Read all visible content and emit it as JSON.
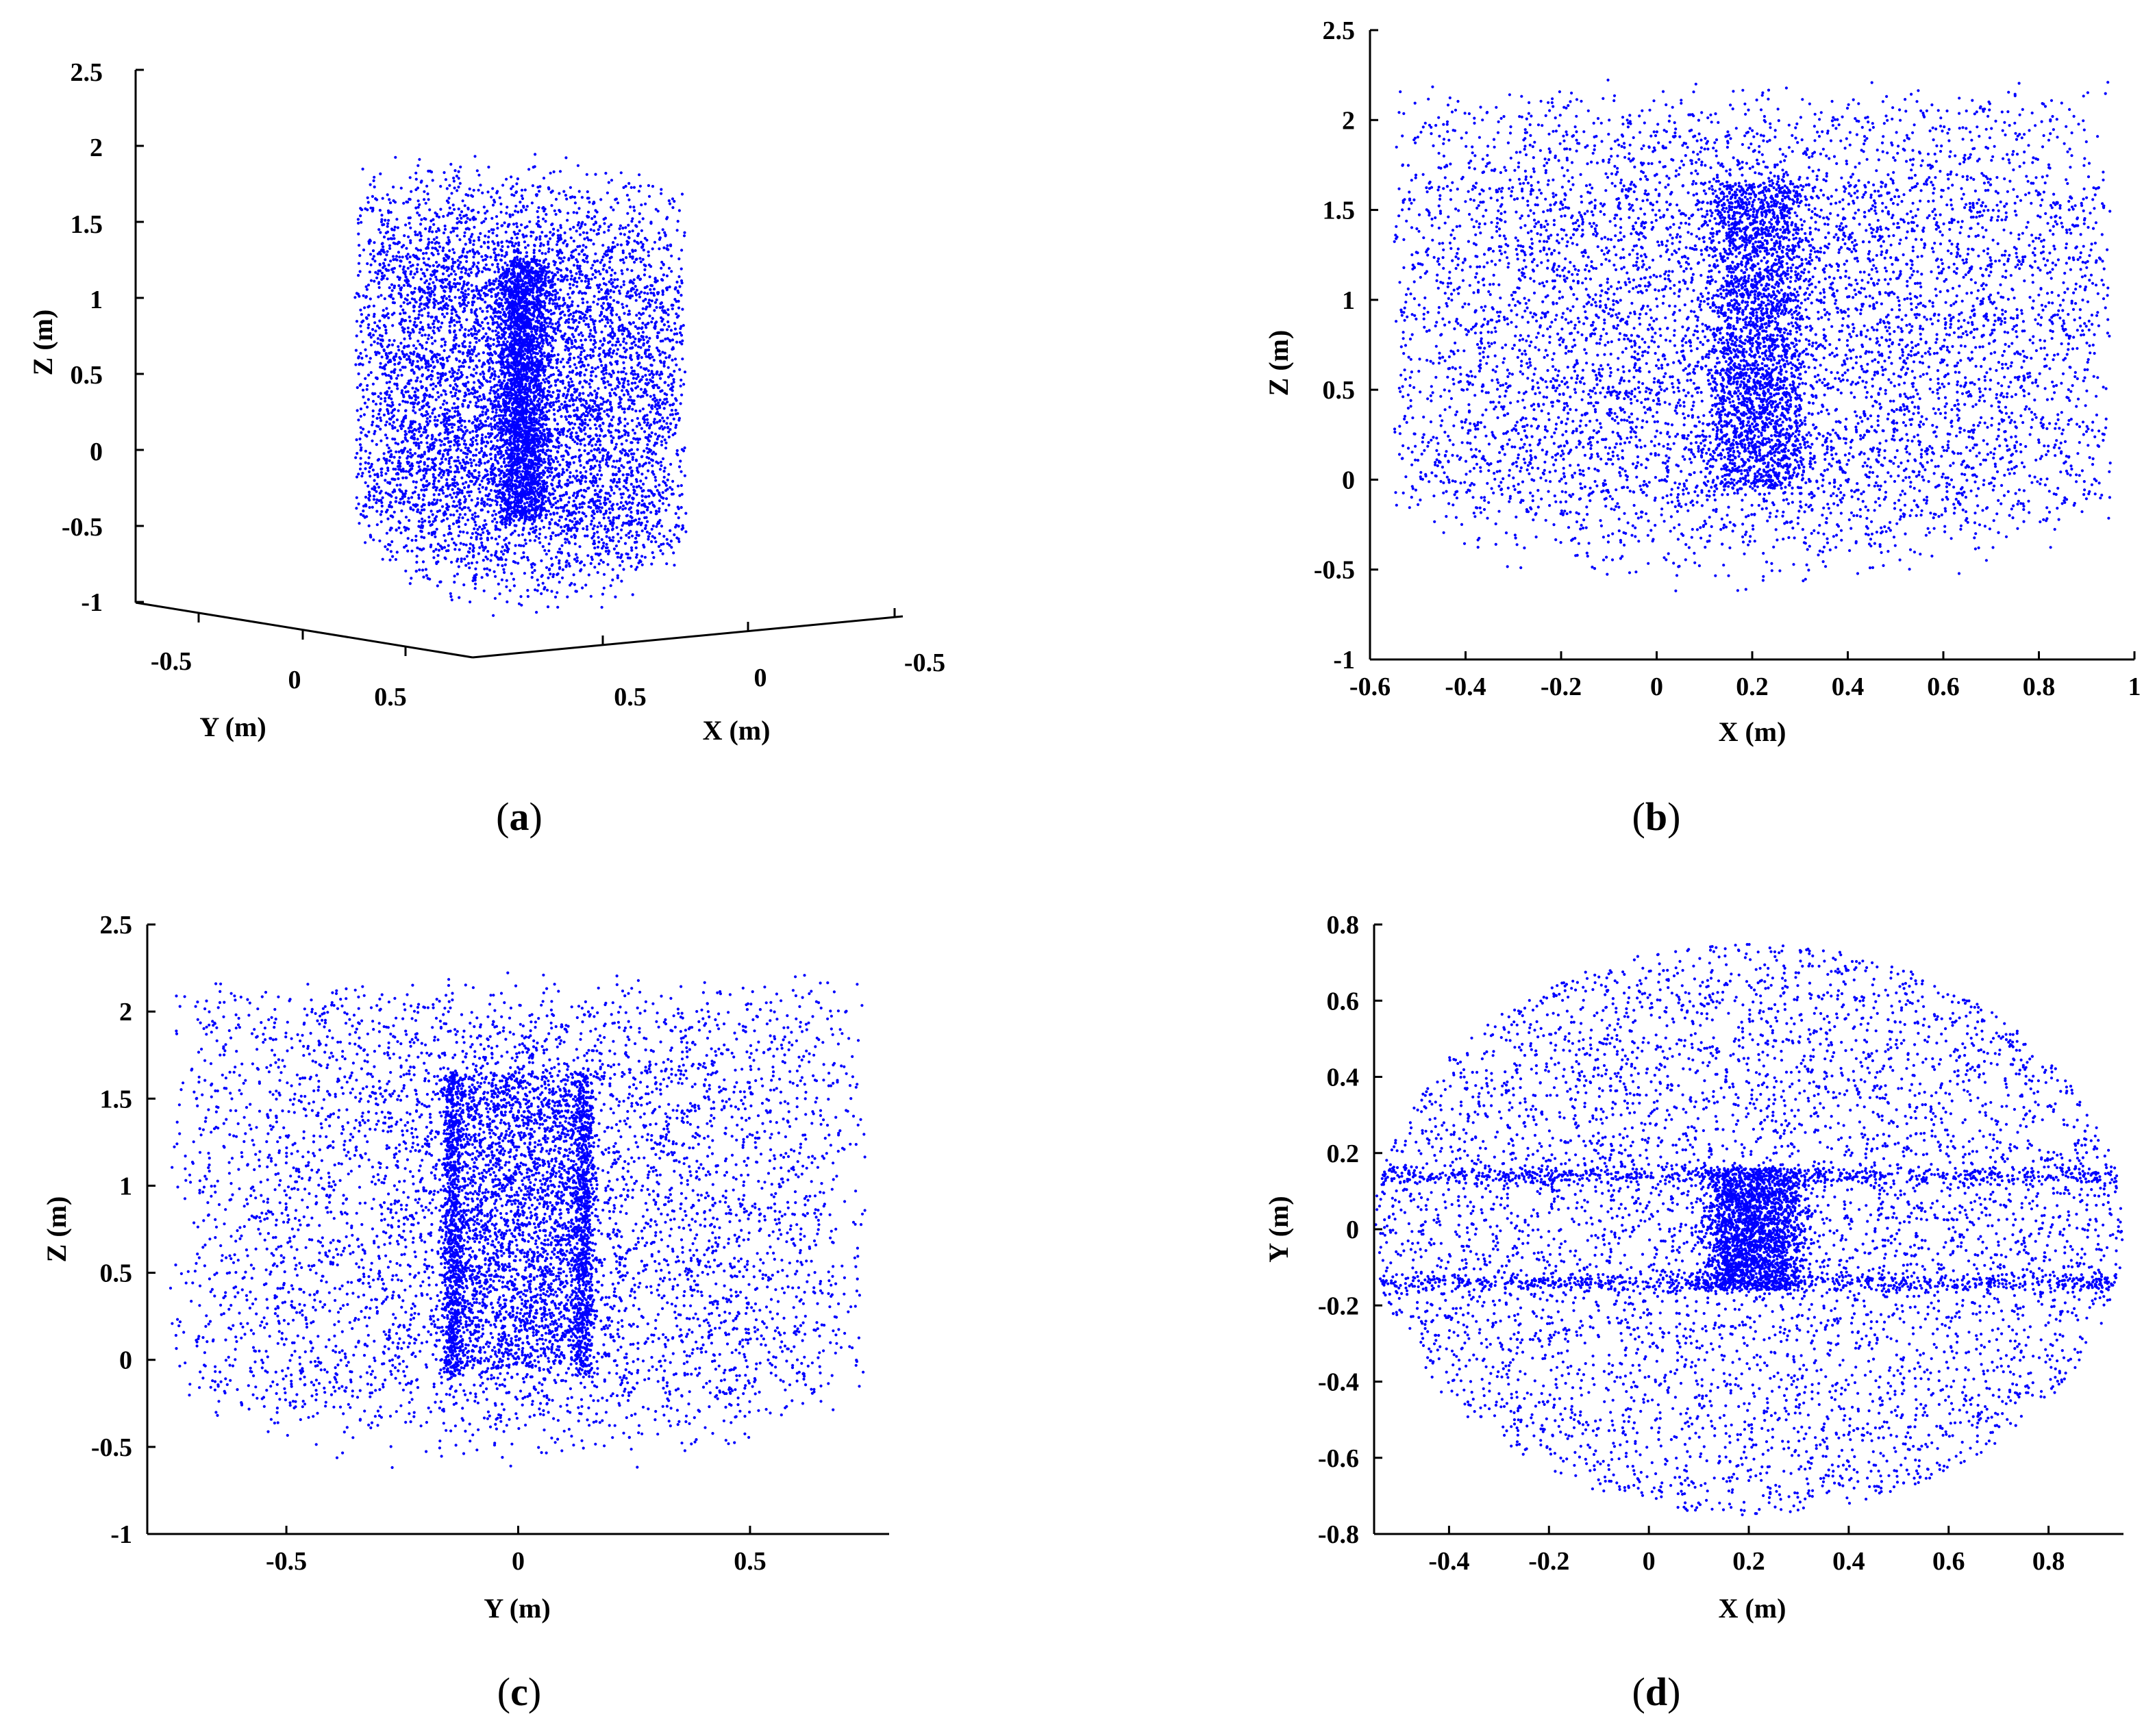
{
  "figure": {
    "colors": {
      "points": "#0000ff",
      "axes": "#000000",
      "background": "#ffffff"
    }
  },
  "chart_data": [
    {
      "panel": "a",
      "type": "scatter",
      "view": "3d",
      "caption": {
        "open": "(",
        "letter": "a",
        "close": ")"
      },
      "xlabel": "X (m)",
      "ylabel": "Y (m)",
      "zlabel": "Z (m)",
      "x_ticks": [
        "0.5",
        "0",
        "-0.5"
      ],
      "y_ticks": [
        "-0.5",
        "0",
        "0.5"
      ],
      "z_ticks": [
        "2.5",
        "2",
        "1.5",
        "1",
        "0.5",
        "0",
        "-0.5",
        "-1"
      ],
      "zlim": [
        -1,
        2.5
      ],
      "point_cloud": {
        "shape": "cylinder",
        "x_range": [
          -0.55,
          0.95
        ],
        "y_range": [
          -0.75,
          0.75
        ],
        "z_range": [
          -0.7,
          2.25
        ],
        "dense_core_x": [
          0.1,
          0.3
        ],
        "dense_core_y": [
          -0.15,
          0.15
        ],
        "dense_core_z": [
          -0.1,
          1.7
        ]
      }
    },
    {
      "panel": "b",
      "type": "scatter",
      "caption": {
        "open": "(",
        "letter": "b",
        "close": ")"
      },
      "xlabel": "X (m)",
      "ylabel": "Z (m)",
      "x_ticks": [
        "-0.6",
        "-0.4",
        "-0.2",
        "0",
        "0.2",
        "0.4",
        "0.6",
        "0.8",
        "1"
      ],
      "y_ticks": [
        "2.5",
        "2",
        "1.5",
        "1",
        "0.5",
        "0",
        "-0.5",
        "-1"
      ],
      "xlim": [
        -0.6,
        1.0
      ],
      "ylim": [
        -1,
        2.5
      ],
      "point_cloud": {
        "x_range": [
          -0.55,
          0.95
        ],
        "z_range": [
          -0.7,
          2.25
        ],
        "dense_band_x": [
          0.15,
          0.3
        ],
        "dense_band_z": [
          -0.1,
          1.7
        ]
      }
    },
    {
      "panel": "c",
      "type": "scatter",
      "caption": {
        "open": "(",
        "letter": "c",
        "close": ")"
      },
      "xlabel": "Y (m)",
      "ylabel": "Z (m)",
      "x_ticks": [
        "-0.5",
        "0",
        "0.5"
      ],
      "y_ticks": [
        "2.5",
        "2",
        "1.5",
        "1",
        "0.5",
        "0",
        "-0.5",
        "-1"
      ],
      "xlim": [
        -0.8,
        0.8
      ],
      "ylim": [
        -1,
        2.5
      ],
      "point_cloud": {
        "y_range": [
          -0.75,
          0.75
        ],
        "z_range": [
          -0.7,
          2.25
        ],
        "dense_lines_y": [
          -0.14,
          0.14
        ],
        "dense_band_z": [
          0.0,
          1.6
        ]
      }
    },
    {
      "panel": "d",
      "type": "scatter",
      "caption": {
        "open": "(",
        "letter": "d",
        "close": ")"
      },
      "xlabel": "X (m)",
      "ylabel": "Y (m)",
      "x_ticks": [
        "-0.4",
        "-0.2",
        "0",
        "0.2",
        "0.4",
        "0.6",
        "0.8"
      ],
      "y_ticks": [
        "0.8",
        "0.6",
        "0.4",
        "0.2",
        "0",
        "-0.2",
        "-0.4",
        "-0.6",
        "-0.8"
      ],
      "xlim": [
        -0.55,
        0.95
      ],
      "ylim": [
        -0.8,
        0.8
      ],
      "point_cloud": {
        "shape": "ellipse",
        "x_range": [
          -0.55,
          0.95
        ],
        "y_range": [
          -0.75,
          0.75
        ],
        "dense_lines_y": [
          -0.14,
          0.14
        ],
        "dense_band_x": [
          0.15,
          0.28
        ]
      }
    }
  ]
}
